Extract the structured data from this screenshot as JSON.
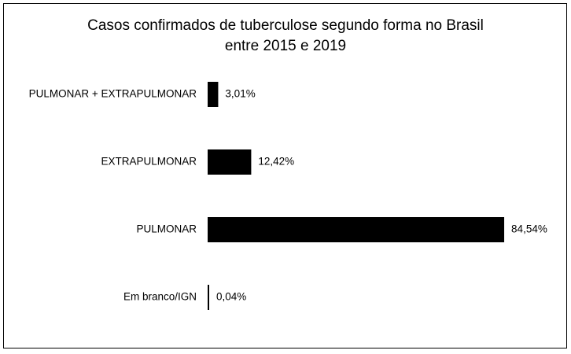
{
  "chart_data": {
    "type": "bar",
    "orientation": "horizontal",
    "title": [
      "Casos confirmados de tuberculose segundo forma no Brasil",
      "entre 2015 e 2019"
    ],
    "categories": [
      "PULMONAR + EXTRAPULMONAR",
      "EXTRAPULMONAR",
      "PULMONAR",
      "Em branco/IGN"
    ],
    "values": [
      3.01,
      12.42,
      84.54,
      0.04
    ],
    "value_labels": [
      "3,01%",
      "12,42%",
      "84,54%",
      "0,04%"
    ],
    "color": "#000000"
  }
}
